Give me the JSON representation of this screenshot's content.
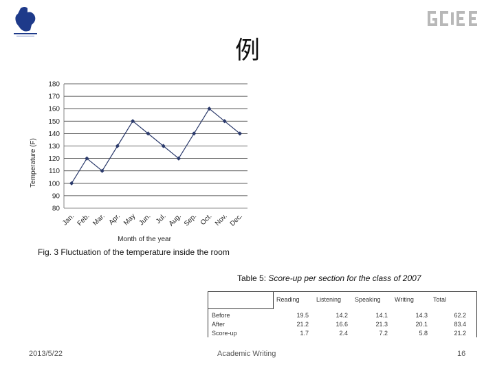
{
  "slide": {
    "title": "例",
    "figure_caption": "Fig. 3 Fluctuation of the temperature inside the room"
  },
  "chart_data": {
    "type": "line",
    "categories": [
      "Jan.",
      "Feb.",
      "Mar.",
      "Apr.",
      "May",
      "Jun.",
      "Jul.",
      "Aug.",
      "Sep.",
      "Oct.",
      "Nov.",
      "Dec."
    ],
    "values": [
      100,
      120,
      110,
      130,
      150,
      140,
      130,
      120,
      140,
      160,
      150,
      140
    ],
    "xlabel": "Month of the year",
    "ylabel": "Temperature (F)",
    "ylim": [
      80,
      180
    ],
    "yticks": [
      80,
      90,
      100,
      110,
      120,
      130,
      140,
      150,
      160,
      170,
      180
    ],
    "grid": "horizontal",
    "legend": "none",
    "line_color": "#2b3a6b"
  },
  "table": {
    "caption_label": "Table 5:",
    "caption_text": "Score-up per section for the class of 2007",
    "headers": [
      "Reading",
      "Listening",
      "Speaking",
      "Writing",
      "Total"
    ],
    "row_labels": [
      "Before",
      "After",
      "Score-up"
    ],
    "columns": [
      [
        "19.5",
        "21.2",
        "1.7"
      ],
      [
        "14.2",
        "16.6",
        "2.4"
      ],
      [
        "14.1",
        "21.3",
        "7.2"
      ],
      [
        "14.3",
        "20.1",
        "5.8"
      ],
      [
        "62.2",
        "83.4",
        "21.2"
      ]
    ]
  },
  "footer": {
    "date": "2013/5/22",
    "title": "Academic Writing",
    "page": "16"
  },
  "logos": {
    "left_color": "#1e3a8a",
    "right_color": "#b8b8b8"
  }
}
